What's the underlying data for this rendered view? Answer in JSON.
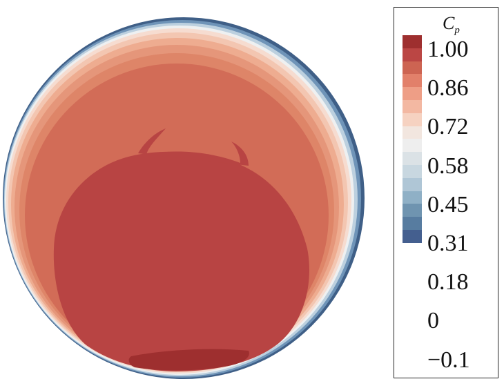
{
  "legend": {
    "title": "C",
    "title_subscript": "p",
    "tick_labels": [
      "1.00",
      "0.86",
      "0.72",
      "0.58",
      "0.45",
      "0.31",
      "0.18",
      "0",
      "−0.1"
    ],
    "level_colors": [
      "#9e2f2f",
      "#bb4644",
      "#cd6452",
      "#e2806a",
      "#ee9e86",
      "#f3b8a2",
      "#f6d2c1",
      "#f2e6df",
      "#eeeeee",
      "#dbe2e6",
      "#c8d7e0",
      "#afc6d6",
      "#8fb0c6",
      "#6f94b0",
      "#577ca0",
      "#445f8f"
    ]
  },
  "field": {
    "levels_outer_to_inner": [
      "#3f5f87",
      "#5b7fa6",
      "#8fb0c9",
      "#cfdde7",
      "#eef0f1",
      "#f6dfd3",
      "#f4c7b2",
      "#eeaa8e",
      "#e38f74",
      "#d97a5f",
      "#cc6452",
      "#b84443",
      "#a02f30"
    ]
  }
}
